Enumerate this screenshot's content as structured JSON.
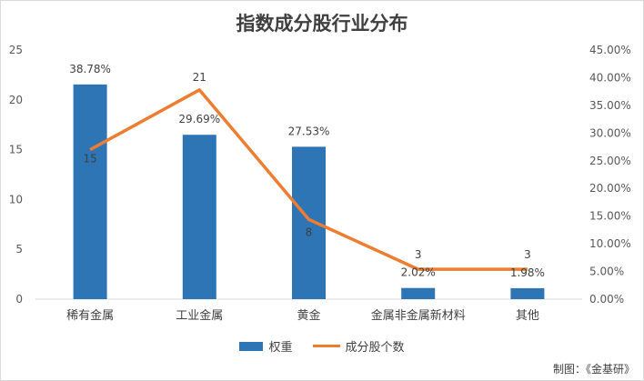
{
  "title": "指数成分股行业分布",
  "source": "制图：《金基研》",
  "colors": {
    "bar": "#2e75b6",
    "line": "#ed7d31",
    "grid": "#d9d9d9",
    "text": "#595959"
  },
  "chart_data": {
    "type": "bar+line",
    "title": "指数成分股行业分布",
    "categories": [
      "稀有金属",
      "工业金属",
      "黄金",
      "金属非金属新材料",
      "其他"
    ],
    "series": [
      {
        "name": "权重",
        "type": "bar",
        "axis": "right",
        "values": [
          38.78,
          29.69,
          27.53,
          2.02,
          1.98
        ],
        "labels": [
          "38.78%",
          "29.69%",
          "27.53%",
          "2.02%",
          "1.98%"
        ]
      },
      {
        "name": "成分股个数",
        "type": "line",
        "axis": "left",
        "values": [
          15,
          21,
          8,
          3,
          3
        ],
        "labels": [
          "15",
          "21",
          "8",
          "3",
          "3"
        ]
      }
    ],
    "left_axis": {
      "ylim": [
        0,
        25
      ],
      "ticks": [
        "0",
        "5",
        "10",
        "15",
        "20",
        "25"
      ]
    },
    "right_axis": {
      "ylim": [
        0,
        45
      ],
      "ticks": [
        "0.00%",
        "5.00%",
        "10.00%",
        "15.00%",
        "20.00%",
        "25.00%",
        "30.00%",
        "35.00%",
        "40.00%",
        "45.00%"
      ]
    },
    "grid": false,
    "legend": "bottom"
  }
}
